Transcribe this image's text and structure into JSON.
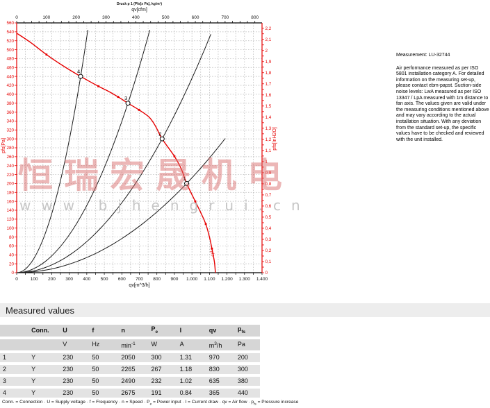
{
  "watermark": {
    "line1": "恒瑞宏晟机电",
    "line2": "www.bjhengrui.cn"
  },
  "side_note": {
    "measurement": "Measurement: LU-32744",
    "body": "Air performance measured as per ISO 5801 installation category A. For detailed information on the measuring set-up, please contact ebm-papst. Suction-side noise levels: LwA measured as per ISO 13347 / LpA measured with 1m distance to fan axis. The values given are valid under the measuring conditions mentioned above and may vary according to the actual installation situation. With any deviation from the standard set-up, the specific values have to be checked and reviewed with the unit installed."
  },
  "chart_data": {
    "type": "line",
    "title": "Druck p 1 (Pfs[x Pa], kg/m³)",
    "colors": {
      "curve_red": "#e60000",
      "system_black": "#1c1c1c",
      "grid": "#b3b3b3"
    },
    "axes": {
      "bottom": {
        "label": "qv[m^3/h]",
        "min": 0,
        "max": 1400,
        "label_step": 100,
        "minor_step": 50,
        "tick_labels": [
          "0",
          "100",
          "200",
          "300",
          "400",
          "500",
          "600",
          "700",
          "800",
          "900",
          "1.000",
          "1.100",
          "1.200",
          "1.300",
          "1.400"
        ]
      },
      "top": {
        "label": "qv[cfm]",
        "min": 0,
        "max": 824,
        "label_step": 100,
        "minor_step": 25,
        "cfm_to_m3h": 1.69901,
        "tick_labels": [
          "0",
          "100",
          "200",
          "300",
          "400",
          "500",
          "600",
          "700",
          "800"
        ]
      },
      "left": {
        "label": "pfs[Pa]",
        "min": 0,
        "max": 560,
        "step": 20,
        "tick_labels": [
          "0",
          "20",
          "40",
          "60",
          "80",
          "100",
          "120",
          "140",
          "160",
          "180",
          "200",
          "220",
          "240",
          "260",
          "280",
          "300",
          "320",
          "340",
          "360",
          "380",
          "400",
          "420",
          "440",
          "460",
          "480",
          "500",
          "520",
          "540",
          "560"
        ]
      },
      "right": {
        "label": "pfs[InH2O]",
        "min": 0,
        "max": 2.2,
        "step": 0.1,
        "inh2o_to_pa": 249.089,
        "minor_step": 0.05,
        "tick_labels": [
          "0",
          "0,1",
          "0,2",
          "0,3",
          "0,4",
          "0,5",
          "0,6",
          "0,7",
          "0,8",
          "0,9",
          "1",
          "1,1",
          "1,2",
          "1,3",
          "1,4",
          "1,5",
          "1,6",
          "1,7",
          "1,8",
          "1,9",
          "2",
          "2,1",
          "2,2"
        ]
      }
    },
    "fan_curve": {
      "name": "pfs",
      "points": [
        [
          0,
          537
        ],
        [
          80,
          516
        ],
        [
          170,
          489
        ],
        [
          268,
          463
        ],
        [
          365,
          440
        ],
        [
          466,
          418
        ],
        [
          522,
          407
        ],
        [
          579,
          394
        ],
        [
          635,
          380
        ],
        [
          698,
          365
        ],
        [
          755,
          349
        ],
        [
          790,
          330
        ],
        [
          830,
          300
        ],
        [
          900,
          261
        ],
        [
          940,
          232
        ],
        [
          970,
          200
        ],
        [
          1019,
          160
        ],
        [
          1050,
          135
        ],
        [
          1079,
          109
        ],
        [
          1100,
          80
        ],
        [
          1114,
          54
        ],
        [
          1128,
          25
        ],
        [
          1134,
          0
        ]
      ]
    },
    "marker_dots": [
      [
        170,
        489
      ],
      [
        466,
        418
      ],
      [
        579,
        394
      ],
      [
        698,
        365
      ],
      [
        900,
        261
      ],
      [
        1019,
        160
      ],
      [
        1079,
        109
      ],
      [
        1114,
        54
      ]
    ],
    "operating_points": [
      {
        "n": "1",
        "qv": 970,
        "pfs": 200
      },
      {
        "n": "2",
        "qv": 830,
        "pfs": 300
      },
      {
        "n": "3",
        "qv": 635,
        "pfs": 380
      },
      {
        "n": "4",
        "qv": 365,
        "pfs": 440
      }
    ],
    "system_curves": [
      {
        "through": "1",
        "k": 0.00021256,
        "qmax": 1190
      },
      {
        "through": "2",
        "k": 0.00043548,
        "qmax": 1108
      },
      {
        "through": "3",
        "k": 0.00094226,
        "qmax": 760
      },
      {
        "through": "4",
        "k": 0.0033027,
        "qmax": 406
      }
    ],
    "curve_end_label": "pfs"
  },
  "table": {
    "section_title": "Measured values",
    "headers": [
      "",
      "Conn.",
      "U",
      "f",
      "n",
      "P_(e)",
      "I",
      "qv",
      "p_(fs)"
    ],
    "units": [
      "",
      "",
      "V",
      "Hz",
      "min^(-1)",
      "W",
      "A",
      "m^(3)/h",
      "Pa"
    ],
    "rows": [
      [
        "1",
        "Y",
        "230",
        "50",
        "2050",
        "300",
        "1.31",
        "970",
        "200"
      ],
      [
        "2",
        "Y",
        "230",
        "50",
        "2265",
        "267",
        "1.18",
        "830",
        "300"
      ],
      [
        "3",
        "Y",
        "230",
        "50",
        "2490",
        "232",
        "1.02",
        "635",
        "380"
      ],
      [
        "4",
        "Y",
        "230",
        "50",
        "2675",
        "191",
        "0.84",
        "365",
        "440"
      ]
    ],
    "footnote": "Conn. = Connection · U = Supply voltage · f = Frequency · n = Speed · P_(e) = Power input · I = Current draw · qv = Air flow · p_(fs) = Pressure increase"
  }
}
